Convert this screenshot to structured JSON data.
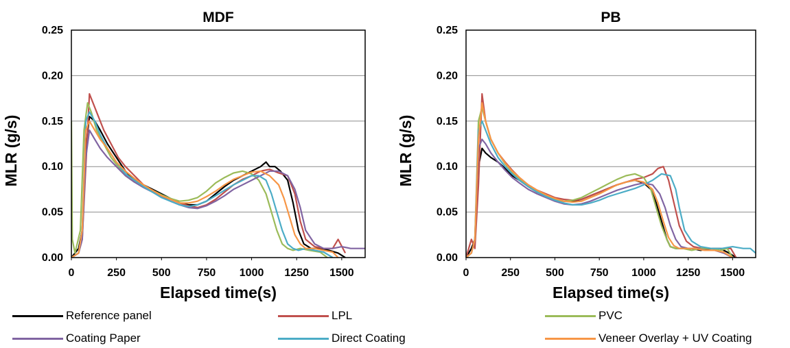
{
  "chart_data": [
    {
      "type": "line",
      "title": "MDF",
      "xlabel": "Elapsed time(s)",
      "ylabel": "MLR (g/s)",
      "xlim": [
        0,
        1630
      ],
      "ylim": [
        0,
        0.25
      ],
      "xticks": [
        "0",
        "250",
        "500",
        "750",
        "1000",
        "1250",
        "1500"
      ],
      "yticks": [
        "0.00",
        "0.05",
        "0.10",
        "0.15",
        "0.20",
        "0.25"
      ],
      "grid": "horizontal",
      "series": [
        {
          "name": "Reference panel",
          "color": "#000000",
          "x": [
            0,
            40,
            60,
            80,
            100,
            130,
            160,
            200,
            250,
            300,
            350,
            400,
            450,
            500,
            550,
            600,
            650,
            700,
            750,
            800,
            850,
            900,
            950,
            1000,
            1050,
            1080,
            1100,
            1130,
            1160,
            1200,
            1230,
            1260,
            1290,
            1330,
            1380,
            1430,
            1480,
            1520
          ],
          "y": [
            0.0,
            0.01,
            0.03,
            0.12,
            0.155,
            0.15,
            0.14,
            0.125,
            0.11,
            0.095,
            0.085,
            0.08,
            0.075,
            0.07,
            0.065,
            0.06,
            0.058,
            0.058,
            0.062,
            0.07,
            0.078,
            0.085,
            0.09,
            0.095,
            0.1,
            0.105,
            0.1,
            0.1,
            0.095,
            0.085,
            0.06,
            0.03,
            0.015,
            0.01,
            0.01,
            0.008,
            0.005,
            0.0
          ]
        },
        {
          "name": "LPL",
          "color": "#c0504d",
          "x": [
            0,
            40,
            60,
            80,
            100,
            120,
            150,
            180,
            220,
            260,
            300,
            350,
            400,
            450,
            500,
            550,
            600,
            650,
            700,
            750,
            800,
            850,
            900,
            950,
            1000,
            1050,
            1100,
            1150,
            1200,
            1240,
            1270,
            1300,
            1350,
            1400,
            1450,
            1480,
            1520
          ],
          "y": [
            0.0,
            0.005,
            0.02,
            0.1,
            0.18,
            0.17,
            0.155,
            0.14,
            0.125,
            0.11,
            0.1,
            0.09,
            0.08,
            0.073,
            0.068,
            0.064,
            0.06,
            0.057,
            0.055,
            0.058,
            0.064,
            0.072,
            0.08,
            0.086,
            0.09,
            0.095,
            0.097,
            0.093,
            0.09,
            0.07,
            0.04,
            0.02,
            0.012,
            0.01,
            0.01,
            0.02,
            0.005
          ]
        },
        {
          "name": "PVC",
          "color": "#9bbb59",
          "x": [
            0,
            5,
            20,
            50,
            70,
            90,
            110,
            140,
            180,
            220,
            260,
            300,
            350,
            400,
            450,
            500,
            550,
            600,
            650,
            700,
            750,
            800,
            850,
            900,
            950,
            1000,
            1040,
            1080,
            1110,
            1140,
            1170,
            1200,
            1230,
            1270,
            1320,
            1380,
            1420
          ],
          "y": [
            0.15,
            0.02,
            0.005,
            0.03,
            0.14,
            0.17,
            0.16,
            0.14,
            0.125,
            0.11,
            0.1,
            0.09,
            0.083,
            0.078,
            0.074,
            0.069,
            0.065,
            0.062,
            0.063,
            0.066,
            0.073,
            0.082,
            0.088,
            0.093,
            0.095,
            0.092,
            0.085,
            0.07,
            0.05,
            0.03,
            0.015,
            0.01,
            0.008,
            0.01,
            0.008,
            0.006,
            0.0
          ]
        },
        {
          "name": "Coating Paper",
          "color": "#8064a2",
          "x": [
            0,
            40,
            60,
            80,
            100,
            130,
            160,
            200,
            250,
            300,
            350,
            400,
            450,
            500,
            550,
            600,
            650,
            700,
            750,
            800,
            850,
            900,
            950,
            1000,
            1050,
            1100,
            1150,
            1200,
            1240,
            1270,
            1300,
            1350,
            1400,
            1450,
            1500,
            1550,
            1600,
            1630
          ],
          "y": [
            0.0,
            0.005,
            0.02,
            0.11,
            0.14,
            0.13,
            0.12,
            0.11,
            0.1,
            0.09,
            0.083,
            0.077,
            0.072,
            0.067,
            0.062,
            0.058,
            0.055,
            0.054,
            0.057,
            0.062,
            0.068,
            0.075,
            0.08,
            0.085,
            0.09,
            0.095,
            0.095,
            0.09,
            0.075,
            0.055,
            0.03,
            0.015,
            0.01,
            0.01,
            0.012,
            0.01,
            0.01,
            0.01
          ]
        },
        {
          "name": "Direct Coating",
          "color": "#4bacc6",
          "x": [
            0,
            40,
            60,
            80,
            100,
            130,
            160,
            200,
            250,
            300,
            350,
            400,
            450,
            500,
            550,
            600,
            650,
            700,
            750,
            800,
            850,
            900,
            950,
            1000,
            1040,
            1080,
            1110,
            1140,
            1170,
            1200,
            1230,
            1260,
            1300,
            1350,
            1400,
            1450
          ],
          "y": [
            0.0,
            0.005,
            0.03,
            0.15,
            0.16,
            0.15,
            0.135,
            0.12,
            0.105,
            0.092,
            0.085,
            0.078,
            0.072,
            0.066,
            0.062,
            0.058,
            0.056,
            0.058,
            0.062,
            0.068,
            0.074,
            0.08,
            0.085,
            0.09,
            0.09,
            0.085,
            0.07,
            0.05,
            0.03,
            0.015,
            0.01,
            0.008,
            0.01,
            0.008,
            0.006,
            0.0
          ]
        },
        {
          "name": "Veneer Overlay + UV Coating",
          "color": "#f79646",
          "x": [
            0,
            40,
            60,
            80,
            100,
            130,
            160,
            200,
            250,
            300,
            350,
            400,
            450,
            500,
            550,
            600,
            650,
            700,
            750,
            800,
            850,
            900,
            950,
            1000,
            1050,
            1100,
            1150,
            1180,
            1210,
            1240,
            1270,
            1300,
            1350,
            1400,
            1450,
            1480
          ],
          "y": [
            0.0,
            0.005,
            0.03,
            0.14,
            0.15,
            0.14,
            0.13,
            0.12,
            0.105,
            0.095,
            0.087,
            0.08,
            0.074,
            0.068,
            0.064,
            0.06,
            0.06,
            0.062,
            0.067,
            0.073,
            0.08,
            0.086,
            0.09,
            0.094,
            0.095,
            0.09,
            0.08,
            0.065,
            0.045,
            0.025,
            0.015,
            0.01,
            0.01,
            0.008,
            0.006,
            0.0
          ]
        }
      ]
    },
    {
      "type": "line",
      "title": "PB",
      "xlabel": "Elapsed time(s)",
      "ylabel": "MLR (g/s)",
      "xlim": [
        0,
        1630
      ],
      "ylim": [
        0,
        0.25
      ],
      "xticks": [
        "0",
        "250",
        "500",
        "750",
        "1000",
        "1250",
        "1500"
      ],
      "yticks": [
        "0.00",
        "0.05",
        "0.10",
        "0.15",
        "0.20",
        "0.25"
      ],
      "grid": "horizontal",
      "series": [
        {
          "name": "Reference panel",
          "color": "#000000",
          "x": [
            0,
            30,
            50,
            70,
            90,
            110,
            140,
            180,
            220,
            260,
            300,
            350,
            400,
            450,
            500,
            550,
            600,
            650,
            700,
            750,
            800,
            850,
            900,
            950,
            1000,
            1040,
            1070,
            1100,
            1130,
            1150,
            1180,
            1220,
            1270,
            1320,
            1380,
            1430,
            1480,
            1520
          ],
          "y": [
            0.0,
            0.01,
            0.02,
            0.1,
            0.12,
            0.115,
            0.11,
            0.105,
            0.098,
            0.09,
            0.085,
            0.078,
            0.072,
            0.068,
            0.064,
            0.062,
            0.062,
            0.064,
            0.068,
            0.072,
            0.076,
            0.08,
            0.083,
            0.085,
            0.082,
            0.075,
            0.06,
            0.04,
            0.02,
            0.012,
            0.01,
            0.01,
            0.01,
            0.008,
            0.01,
            0.01,
            0.005,
            0.0
          ]
        },
        {
          "name": "LPL",
          "color": "#c0504d",
          "x": [
            0,
            30,
            50,
            70,
            90,
            110,
            140,
            180,
            220,
            260,
            300,
            350,
            400,
            450,
            500,
            550,
            600,
            650,
            700,
            750,
            800,
            850,
            900,
            950,
            1000,
            1050,
            1080,
            1110,
            1140,
            1170,
            1200,
            1240,
            1280,
            1330,
            1380,
            1440,
            1490,
            1520
          ],
          "y": [
            0.0,
            0.02,
            0.01,
            0.08,
            0.18,
            0.15,
            0.13,
            0.115,
            0.105,
            0.096,
            0.088,
            0.08,
            0.074,
            0.07,
            0.066,
            0.064,
            0.063,
            0.064,
            0.068,
            0.072,
            0.076,
            0.08,
            0.083,
            0.086,
            0.088,
            0.092,
            0.098,
            0.1,
            0.085,
            0.06,
            0.035,
            0.018,
            0.012,
            0.01,
            0.01,
            0.01,
            0.01,
            0.0
          ]
        },
        {
          "name": "PVC",
          "color": "#9bbb59",
          "x": [
            0,
            30,
            50,
            70,
            90,
            110,
            140,
            180,
            220,
            260,
            300,
            350,
            400,
            450,
            500,
            550,
            600,
            650,
            700,
            750,
            800,
            850,
            900,
            950,
            1000,
            1040,
            1070,
            1100,
            1130,
            1150,
            1180,
            1220,
            1270,
            1320,
            1380,
            1430,
            1470,
            1500
          ],
          "y": [
            0.0,
            0.005,
            0.02,
            0.15,
            0.165,
            0.15,
            0.13,
            0.115,
            0.103,
            0.094,
            0.087,
            0.079,
            0.073,
            0.068,
            0.064,
            0.062,
            0.063,
            0.066,
            0.071,
            0.076,
            0.081,
            0.086,
            0.09,
            0.092,
            0.088,
            0.075,
            0.055,
            0.035,
            0.02,
            0.012,
            0.01,
            0.01,
            0.008,
            0.01,
            0.01,
            0.008,
            0.01,
            0.0
          ]
        },
        {
          "name": "Coating Paper",
          "color": "#8064a2",
          "x": [
            0,
            30,
            50,
            70,
            90,
            110,
            140,
            180,
            220,
            260,
            300,
            350,
            400,
            450,
            500,
            550,
            600,
            650,
            700,
            750,
            800,
            850,
            900,
            950,
            1000,
            1050,
            1090,
            1120,
            1150,
            1180,
            1210,
            1250,
            1300,
            1350,
            1400,
            1450,
            1500
          ],
          "y": [
            0.0,
            0.005,
            0.02,
            0.12,
            0.13,
            0.125,
            0.115,
            0.105,
            0.096,
            0.088,
            0.082,
            0.075,
            0.07,
            0.066,
            0.062,
            0.059,
            0.058,
            0.059,
            0.062,
            0.066,
            0.07,
            0.074,
            0.077,
            0.08,
            0.082,
            0.08,
            0.07,
            0.055,
            0.035,
            0.02,
            0.012,
            0.01,
            0.01,
            0.008,
            0.008,
            0.005,
            0.0
          ]
        },
        {
          "name": "Direct Coating",
          "color": "#4bacc6",
          "x": [
            0,
            30,
            50,
            70,
            90,
            110,
            140,
            180,
            220,
            260,
            300,
            350,
            400,
            450,
            500,
            550,
            600,
            650,
            700,
            750,
            800,
            850,
            900,
            950,
            1000,
            1050,
            1100,
            1150,
            1180,
            1200,
            1230,
            1270,
            1320,
            1380,
            1440,
            1500,
            1560,
            1600,
            1630
          ],
          "y": [
            0.0,
            0.005,
            0.02,
            0.14,
            0.15,
            0.14,
            0.125,
            0.11,
            0.1,
            0.092,
            0.085,
            0.078,
            0.072,
            0.067,
            0.063,
            0.06,
            0.058,
            0.058,
            0.06,
            0.063,
            0.067,
            0.07,
            0.073,
            0.076,
            0.08,
            0.085,
            0.092,
            0.09,
            0.075,
            0.055,
            0.03,
            0.018,
            0.012,
            0.01,
            0.01,
            0.012,
            0.01,
            0.01,
            0.005
          ]
        },
        {
          "name": "Veneer Overlay + UV Coating",
          "color": "#f79646",
          "x": [
            0,
            30,
            50,
            70,
            90,
            110,
            140,
            180,
            220,
            260,
            300,
            350,
            400,
            450,
            500,
            550,
            600,
            650,
            700,
            750,
            800,
            850,
            900,
            950,
            1000,
            1050,
            1080,
            1110,
            1140,
            1170,
            1200,
            1240,
            1290,
            1340,
            1400,
            1450,
            1500
          ],
          "y": [
            0.0,
            0.005,
            0.02,
            0.13,
            0.17,
            0.15,
            0.13,
            0.115,
            0.104,
            0.095,
            0.088,
            0.08,
            0.074,
            0.069,
            0.065,
            0.062,
            0.061,
            0.062,
            0.066,
            0.07,
            0.075,
            0.08,
            0.083,
            0.085,
            0.083,
            0.075,
            0.06,
            0.04,
            0.022,
            0.013,
            0.01,
            0.01,
            0.01,
            0.008,
            0.008,
            0.006,
            0.0
          ]
        }
      ]
    }
  ],
  "legend": [
    {
      "label": "Reference panel",
      "color": "#000000"
    },
    {
      "label": "LPL",
      "color": "#c0504d"
    },
    {
      "label": "PVC",
      "color": "#9bbb59"
    },
    {
      "label": "Coating Paper",
      "color": "#8064a2"
    },
    {
      "label": "Direct Coating",
      "color": "#4bacc6"
    },
    {
      "label": "Veneer Overlay + UV Coating",
      "color": "#f79646"
    }
  ]
}
